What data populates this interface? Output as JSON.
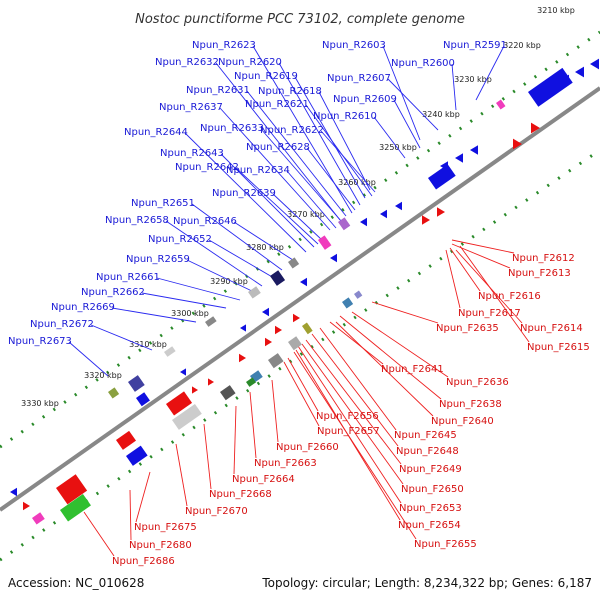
{
  "title": "Nostoc punctiforme PCC 73102, complete genome",
  "accession": "Accession: NC_010628",
  "summary": "Topology: circular; Length: 8,234,322 bp; Genes: 6,187",
  "colors": {
    "reverse_strand": "#1010e0",
    "forward_strand": "#e81010",
    "axis": "#888888",
    "dotted_track": "#2a8a2a"
  },
  "ticks": [
    "3210 kbp",
    "3220 kbp",
    "3230 kbp",
    "3240 kbp",
    "3250 kbp",
    "3260 kbp",
    "3270 kbp",
    "3280 kbp",
    "3290 kbp",
    "3300 kbp",
    "3310 kbp",
    "3320 kbp",
    "3330 kbp"
  ],
  "reverse_genes": [
    "Npun_R2591",
    "Npun_R2600",
    "Npun_R2603",
    "Npun_R2607",
    "Npun_R2609",
    "Npun_R2610",
    "Npun_R2618",
    "Npun_R2619",
    "Npun_R2620",
    "Npun_R2621",
    "Npun_R2622",
    "Npun_R2623",
    "Npun_R2628",
    "Npun_R2631",
    "Npun_R2632",
    "Npun_R2633",
    "Npun_R2634",
    "Npun_R2637",
    "Npun_R2639",
    "Npun_R2642",
    "Npun_R2643",
    "Npun_R2644",
    "Npun_R2646",
    "Npun_R2651",
    "Npun_R2652",
    "Npun_R2658",
    "Npun_R2659",
    "Npun_R2661",
    "Npun_R2662",
    "Npun_R2669",
    "Npun_R2672",
    "Npun_R2673"
  ],
  "forward_genes": [
    "Npun_F2612",
    "Npun_F2613",
    "Npun_F2616",
    "Npun_F2617",
    "Npun_F2614",
    "Npun_F2615",
    "Npun_F2635",
    "Npun_F2636",
    "Npun_F2638",
    "Npun_F2641",
    "Npun_F2640",
    "Npun_F2645",
    "Npun_F2648",
    "Npun_F2649",
    "Npun_F2650",
    "Npun_F2653",
    "Npun_F2654",
    "Npun_F2655",
    "Npun_F2656",
    "Npun_F2657",
    "Npun_F2660",
    "Npun_F2663",
    "Npun_F2664",
    "Npun_F2668",
    "Npun_F2670",
    "Npun_F2675",
    "Npun_F2680",
    "Npun_F2686"
  ]
}
